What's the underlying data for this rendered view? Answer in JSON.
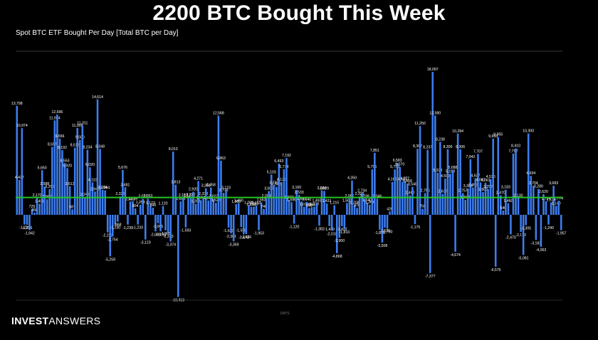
{
  "title": "2200 BTC Bought This Week",
  "subtitle": "Spot BTC ETF Bought Per Day [Total BTC per Day]",
  "brand": {
    "bold": "INVEST",
    "light": "ANSWERS"
  },
  "chart_data": {
    "type": "bar",
    "ylabel": "",
    "xlabel": "DAYS",
    "ylim": [
      -11000,
      20000
    ],
    "grid": false,
    "bar_color": "#3d7df0",
    "average_line": {
      "value": 2200,
      "color": "#22c422"
    },
    "values": [
      13798,
      4427,
      10974,
      -1231,
      -1256,
      -1942,
      725,
      268,
      2170,
      1401,
      5650,
      3588,
      1968,
      3256,
      8597,
      11954,
      12696,
      9656,
      8192,
      6553,
      5920,
      3613,
      687,
      8512,
      11009,
      9500,
      11311,
      2242,
      8234,
      6020,
      4110,
      2948,
      14614,
      8348,
      3154,
      3094,
      -2222,
      -5259,
      -2754,
      -1230,
      -868,
      2333,
      5676,
      3481,
      -1239,
      1681,
      1734,
      804,
      -1233,
      1254,
      2031,
      -3123,
      2053,
      1173,
      896,
      -2095,
      -1065,
      -2100,
      1120,
      -1965,
      -2333,
      -3374,
      8013,
      3813,
      -10413,
      1693,
      2157,
      -1593,
      2137,
      2222,
      2920,
      1393,
      4271,
      1834,
      2338,
      3358,
      1802,
      3458,
      2022,
      1523,
      12568,
      6863,
      2776,
      3123,
      -1620,
      -2361,
      -3359,
      1360,
      1490,
      -1558,
      -2473,
      -2436,
      1200,
      1010,
      1033,
      1153,
      -1953,
      1563,
      740,
      2091,
      3008,
      5103,
      3738,
      3543,
      6493,
      4125,
      5774,
      7192,
      1877,
      1596,
      -1120,
      3160,
      2533,
      1690,
      1012,
      1640,
      850,
      966,
      1028,
      1493,
      -1382,
      3084,
      3029,
      1431,
      -1430,
      -2010,
      1215,
      -4868,
      -2900,
      -1432,
      -1810,
      1500,
      2061,
      4350,
      1208,
      870,
      2325,
      2734,
      2038,
      1540,
      1264,
      5755,
      7851,
      2046,
      -1880,
      -3508,
      -1620,
      -1760,
      420,
      4168,
      5750,
      6583,
      6070,
      4181,
      4272,
      3958,
      2460,
      3540,
      -1175,
      8367,
      11250,
      750,
      2750,
      8237,
      -7377,
      18097,
      12580,
      5333,
      9238,
      2637,
      4592,
      8306,
      5183,
      5688,
      -4674,
      10284,
      8306,
      2757,
      1907,
      3333,
      7042,
      3458,
      4637,
      7707,
      4097,
      2900,
      4061,
      3252,
      4510,
      9653,
      -6576,
      9855,
      2470,
      540,
      3183,
      1460,
      -2470,
      7757,
      8410,
      2130,
      -2173,
      -5081,
      -1305,
      10300,
      4934,
      3704,
      -3183,
      3280,
      -4053,
      2620,
      1724,
      -1240,
      1574,
      3683,
      1140,
      1774,
      -1957
    ]
  }
}
